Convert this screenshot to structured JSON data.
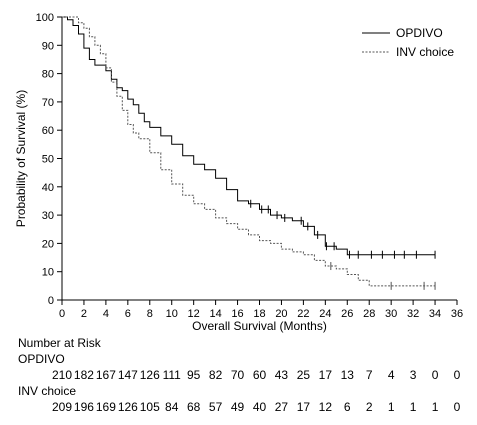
{
  "chart_data": {
    "type": "line",
    "subtype": "kaplan-meier",
    "xlabel": "Overall Survival (Months)",
    "ylabel": "Probability of Survival (%)",
    "xlim": [
      0,
      36
    ],
    "ylim": [
      0,
      100
    ],
    "xticks": [
      0,
      2,
      4,
      6,
      8,
      10,
      12,
      14,
      16,
      18,
      20,
      22,
      24,
      26,
      28,
      30,
      32,
      34,
      36
    ],
    "yticks": [
      0,
      10,
      20,
      30,
      40,
      50,
      60,
      70,
      80,
      90,
      100
    ],
    "grid": false,
    "legend_position": "top-right",
    "series": [
      {
        "name": "OPDIVO",
        "style": "solid",
        "color": "#000000",
        "points": [
          [
            0,
            100
          ],
          [
            0.5,
            99
          ],
          [
            1,
            97
          ],
          [
            1.5,
            94
          ],
          [
            2,
            89
          ],
          [
            2.5,
            85
          ],
          [
            3,
            83
          ],
          [
            3.5,
            83
          ],
          [
            4,
            81
          ],
          [
            4.5,
            78
          ],
          [
            5,
            75
          ],
          [
            5.5,
            74
          ],
          [
            6,
            71
          ],
          [
            6.5,
            69
          ],
          [
            7,
            66
          ],
          [
            7.5,
            63
          ],
          [
            8,
            61
          ],
          [
            9,
            58
          ],
          [
            10,
            55
          ],
          [
            11,
            51
          ],
          [
            12,
            48
          ],
          [
            13,
            46
          ],
          [
            14,
            43
          ],
          [
            15,
            39
          ],
          [
            16,
            35
          ],
          [
            17,
            34
          ],
          [
            18,
            32
          ],
          [
            19,
            30
          ],
          [
            20,
            29
          ],
          [
            21,
            28
          ],
          [
            22,
            26
          ],
          [
            23,
            23
          ],
          [
            24,
            19
          ],
          [
            25,
            18
          ],
          [
            26,
            16
          ],
          [
            34,
            16
          ]
        ],
        "censor_x": [
          17.2,
          18.2,
          18.8,
          19.6,
          20.3,
          21.8,
          22.4,
          23.3,
          24.1,
          24.8,
          26.2,
          27.0,
          28.2,
          29.2,
          30.3,
          31.2,
          32.3,
          34.0
        ]
      },
      {
        "name": "INV choice",
        "style": "dashed",
        "color": "#555555",
        "points": [
          [
            0,
            100
          ],
          [
            0.5,
            100
          ],
          [
            1,
            100
          ],
          [
            1.5,
            98
          ],
          [
            2,
            96
          ],
          [
            2.5,
            93
          ],
          [
            3,
            90
          ],
          [
            3.5,
            87
          ],
          [
            4,
            82
          ],
          [
            4.5,
            77
          ],
          [
            5,
            72
          ],
          [
            5.5,
            67
          ],
          [
            6,
            62
          ],
          [
            6.5,
            59
          ],
          [
            7,
            57
          ],
          [
            8,
            52
          ],
          [
            9,
            46
          ],
          [
            10,
            41
          ],
          [
            11,
            37
          ],
          [
            12,
            34
          ],
          [
            13,
            32
          ],
          [
            14,
            29
          ],
          [
            15,
            27
          ],
          [
            16,
            25
          ],
          [
            17,
            23
          ],
          [
            18,
            21
          ],
          [
            19,
            20
          ],
          [
            20,
            18
          ],
          [
            21,
            17
          ],
          [
            22,
            16
          ],
          [
            23,
            14
          ],
          [
            24,
            12
          ],
          [
            25,
            11
          ],
          [
            26,
            9
          ],
          [
            27,
            7
          ],
          [
            28,
            5
          ],
          [
            34,
            5
          ]
        ],
        "censor_x": [
          24.5,
          30.0,
          33.0,
          34.0
        ]
      }
    ]
  },
  "risk_table": {
    "title": "Number at Risk",
    "times": [
      0,
      2,
      4,
      6,
      8,
      10,
      12,
      14,
      16,
      18,
      20,
      22,
      24,
      26,
      28,
      30,
      32,
      34,
      36
    ],
    "rows": [
      {
        "label": "OPDIVO",
        "values": [
          "210",
          "182",
          "167",
          "147",
          "126",
          "111",
          "95",
          "82",
          "70",
          "60",
          "43",
          "25",
          "17",
          "13",
          "7",
          "4",
          "3",
          "0",
          "0"
        ]
      },
      {
        "label": "INV choice",
        "values": [
          "209",
          "196",
          "169",
          "126",
          "105",
          "84",
          "68",
          "57",
          "49",
          "40",
          "27",
          "17",
          "12",
          "6",
          "2",
          "1",
          "1",
          "1",
          "0"
        ]
      }
    ]
  }
}
